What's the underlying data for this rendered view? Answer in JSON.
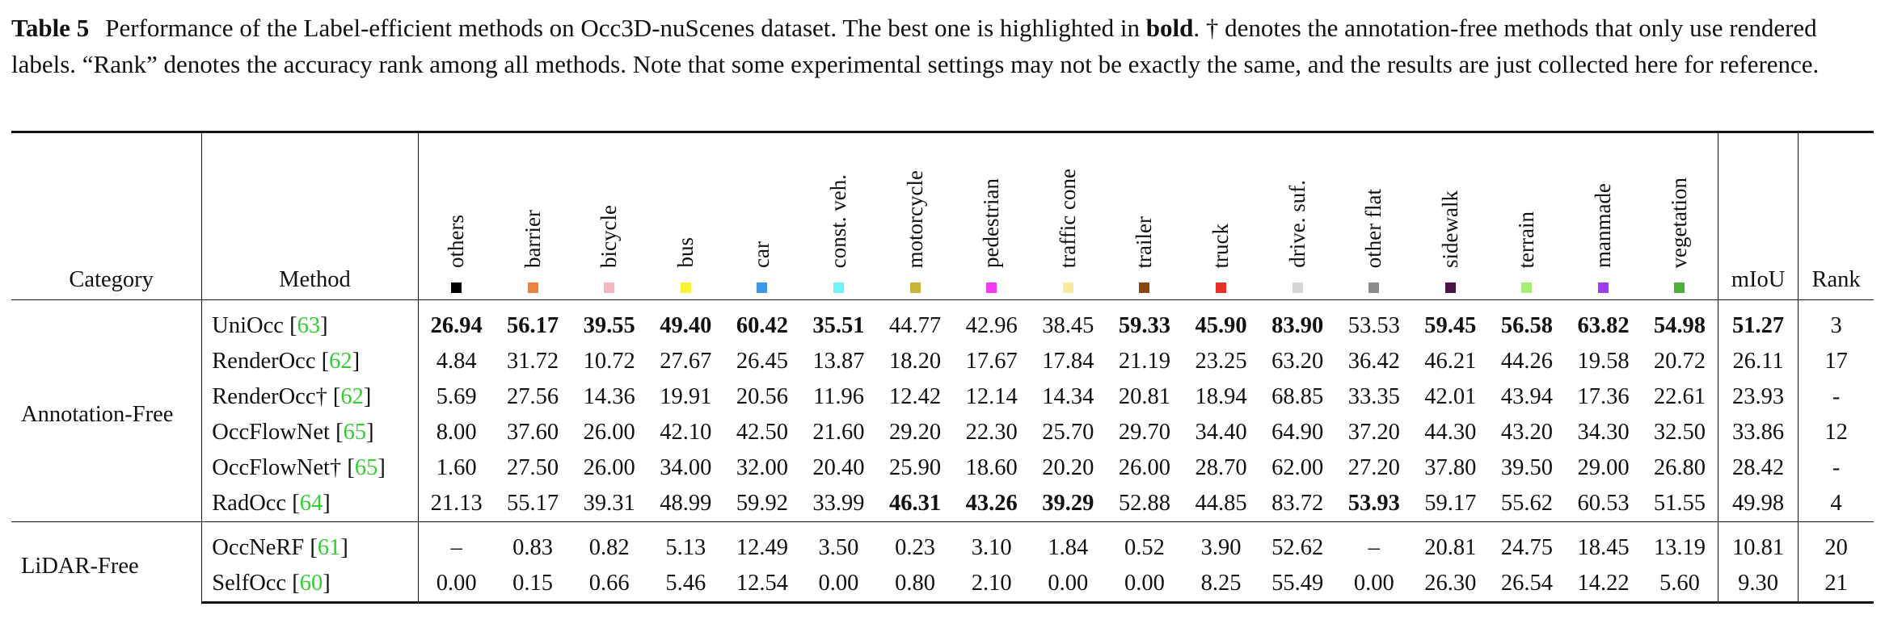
{
  "caption": {
    "label": "Table 5",
    "text_part1": "Performance of the Label-efficient methods on Occ3D-nuScenes dataset. The best one is highlighted in ",
    "bold_word": "bold",
    "text_part2": ". † denotes the annotation-free methods that only use rendered labels. “Rank” denotes the accuracy rank among all methods. Note that some experimental settings may not be exactly the same, and the results are just collected here for reference."
  },
  "headers": {
    "category": "Category",
    "method": "Method",
    "miou": "mIoU",
    "rank": "Rank"
  },
  "classes": [
    {
      "label": "others",
      "color": "#000000"
    },
    {
      "label": "barrier",
      "color": "#f0803c"
    },
    {
      "label": "bicycle",
      "color": "#f4b6c2"
    },
    {
      "label": "bus",
      "color": "#f7f235"
    },
    {
      "label": "car",
      "color": "#3c96e6"
    },
    {
      "label": "const. veh.",
      "color": "#6ef3f7"
    },
    {
      "label": "motorcycle",
      "color": "#c8b43c"
    },
    {
      "label": "pedestrian",
      "color": "#f23cf2"
    },
    {
      "label": "traffic cone",
      "color": "#f7eba0"
    },
    {
      "label": "trailer",
      "color": "#8b4513"
    },
    {
      "label": "truck",
      "color": "#e8302a"
    },
    {
      "label": "drive. suf.",
      "color": "#d6d6d6"
    },
    {
      "label": "other flat",
      "color": "#8c8c8c"
    },
    {
      "label": "sidewalk",
      "color": "#4b1446"
    },
    {
      "label": "terrain",
      "color": "#a6ee78"
    },
    {
      "label": "manmade",
      "color": "#a03cf0"
    },
    {
      "label": "vegetation",
      "color": "#4caf3a"
    }
  ],
  "groups": [
    {
      "category": "Annotation-Free",
      "rows": [
        {
          "method": "UniOcc",
          "cite": "63",
          "values": [
            "26.94",
            "56.17",
            "39.55",
            "49.40",
            "60.42",
            "35.51",
            "44.77",
            "42.96",
            "38.45",
            "59.33",
            "45.90",
            "83.90",
            "53.53",
            "59.45",
            "56.58",
            "63.82",
            "54.98"
          ],
          "miou": "51.27",
          "rank": "3"
        },
        {
          "method": "RenderOcc",
          "cite": "62",
          "values": [
            "4.84",
            "31.72",
            "10.72",
            "27.67",
            "26.45",
            "13.87",
            "18.20",
            "17.67",
            "17.84",
            "21.19",
            "23.25",
            "63.20",
            "36.42",
            "46.21",
            "44.26",
            "19.58",
            "20.72"
          ],
          "miou": "26.11",
          "rank": "17"
        },
        {
          "method": "RenderOcc†",
          "cite": "62",
          "values": [
            "5.69",
            "27.56",
            "14.36",
            "19.91",
            "20.56",
            "11.96",
            "12.42",
            "12.14",
            "14.34",
            "20.81",
            "18.94",
            "68.85",
            "33.35",
            "42.01",
            "43.94",
            "17.36",
            "22.61"
          ],
          "miou": "23.93",
          "rank": "-"
        },
        {
          "method": "OccFlowNet",
          "cite": "65",
          "values": [
            "8.00",
            "37.60",
            "26.00",
            "42.10",
            "42.50",
            "21.60",
            "29.20",
            "22.30",
            "25.70",
            "29.70",
            "34.40",
            "64.90",
            "37.20",
            "44.30",
            "43.20",
            "34.30",
            "32.50"
          ],
          "miou": "33.86",
          "rank": "12"
        },
        {
          "method": "OccFlowNet†",
          "cite": "65",
          "values": [
            "1.60",
            "27.50",
            "26.00",
            "34.00",
            "32.00",
            "20.40",
            "25.90",
            "18.60",
            "20.20",
            "26.00",
            "28.70",
            "62.00",
            "27.20",
            "37.80",
            "39.50",
            "29.00",
            "26.80"
          ],
          "miou": "28.42",
          "rank": "-"
        },
        {
          "method": "RadOcc",
          "cite": "64",
          "values": [
            "21.13",
            "55.17",
            "39.31",
            "48.99",
            "59.92",
            "33.99",
            "46.31",
            "43.26",
            "39.29",
            "52.88",
            "44.85",
            "83.72",
            "53.93",
            "59.17",
            "55.62",
            "60.53",
            "51.55"
          ],
          "miou": "49.98",
          "rank": "4"
        }
      ]
    },
    {
      "category": "LiDAR-Free",
      "rows": [
        {
          "method": "OccNeRF",
          "cite": "61",
          "values": [
            "–",
            "0.83",
            "0.82",
            "5.13",
            "12.49",
            "3.50",
            "0.23",
            "3.10",
            "1.84",
            "0.52",
            "3.90",
            "52.62",
            "–",
            "20.81",
            "24.75",
            "18.45",
            "13.19"
          ],
          "miou": "10.81",
          "rank": "20"
        },
        {
          "method": "SelfOcc",
          "cite": "60",
          "values": [
            "0.00",
            "0.15",
            "0.66",
            "5.46",
            "12.54",
            "0.00",
            "0.80",
            "2.10",
            "0.00",
            "0.00",
            "8.25",
            "55.49",
            "0.00",
            "26.30",
            "26.54",
            "14.22",
            "5.60"
          ],
          "miou": "9.30",
          "rank": "21"
        }
      ]
    }
  ]
}
